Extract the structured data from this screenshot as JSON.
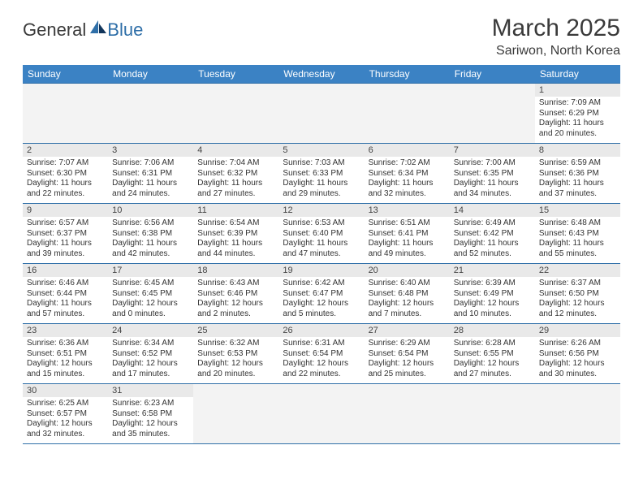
{
  "logo": {
    "text1": "General",
    "text2": "Blue"
  },
  "title": "March 2025",
  "subtitle": "Sariwon, North Korea",
  "colors": {
    "header_bg": "#3b82c4",
    "header_text": "#ffffff",
    "border": "#2f6fa8",
    "daynum_bg": "#e9e9e9",
    "empty_bg": "#f3f3f3",
    "text": "#333333"
  },
  "weekdays": [
    "Sunday",
    "Monday",
    "Tuesday",
    "Wednesday",
    "Thursday",
    "Friday",
    "Saturday"
  ],
  "grid": [
    [
      null,
      null,
      null,
      null,
      null,
      null,
      {
        "n": "1",
        "sr": "7:09 AM",
        "ss": "6:29 PM",
        "dl": "11 hours and 20 minutes."
      }
    ],
    [
      {
        "n": "2",
        "sr": "7:07 AM",
        "ss": "6:30 PM",
        "dl": "11 hours and 22 minutes."
      },
      {
        "n": "3",
        "sr": "7:06 AM",
        "ss": "6:31 PM",
        "dl": "11 hours and 24 minutes."
      },
      {
        "n": "4",
        "sr": "7:04 AM",
        "ss": "6:32 PM",
        "dl": "11 hours and 27 minutes."
      },
      {
        "n": "5",
        "sr": "7:03 AM",
        "ss": "6:33 PM",
        "dl": "11 hours and 29 minutes."
      },
      {
        "n": "6",
        "sr": "7:02 AM",
        "ss": "6:34 PM",
        "dl": "11 hours and 32 minutes."
      },
      {
        "n": "7",
        "sr": "7:00 AM",
        "ss": "6:35 PM",
        "dl": "11 hours and 34 minutes."
      },
      {
        "n": "8",
        "sr": "6:59 AM",
        "ss": "6:36 PM",
        "dl": "11 hours and 37 minutes."
      }
    ],
    [
      {
        "n": "9",
        "sr": "6:57 AM",
        "ss": "6:37 PM",
        "dl": "11 hours and 39 minutes."
      },
      {
        "n": "10",
        "sr": "6:56 AM",
        "ss": "6:38 PM",
        "dl": "11 hours and 42 minutes."
      },
      {
        "n": "11",
        "sr": "6:54 AM",
        "ss": "6:39 PM",
        "dl": "11 hours and 44 minutes."
      },
      {
        "n": "12",
        "sr": "6:53 AM",
        "ss": "6:40 PM",
        "dl": "11 hours and 47 minutes."
      },
      {
        "n": "13",
        "sr": "6:51 AM",
        "ss": "6:41 PM",
        "dl": "11 hours and 49 minutes."
      },
      {
        "n": "14",
        "sr": "6:49 AM",
        "ss": "6:42 PM",
        "dl": "11 hours and 52 minutes."
      },
      {
        "n": "15",
        "sr": "6:48 AM",
        "ss": "6:43 PM",
        "dl": "11 hours and 55 minutes."
      }
    ],
    [
      {
        "n": "16",
        "sr": "6:46 AM",
        "ss": "6:44 PM",
        "dl": "11 hours and 57 minutes."
      },
      {
        "n": "17",
        "sr": "6:45 AM",
        "ss": "6:45 PM",
        "dl": "12 hours and 0 minutes."
      },
      {
        "n": "18",
        "sr": "6:43 AM",
        "ss": "6:46 PM",
        "dl": "12 hours and 2 minutes."
      },
      {
        "n": "19",
        "sr": "6:42 AM",
        "ss": "6:47 PM",
        "dl": "12 hours and 5 minutes."
      },
      {
        "n": "20",
        "sr": "6:40 AM",
        "ss": "6:48 PM",
        "dl": "12 hours and 7 minutes."
      },
      {
        "n": "21",
        "sr": "6:39 AM",
        "ss": "6:49 PM",
        "dl": "12 hours and 10 minutes."
      },
      {
        "n": "22",
        "sr": "6:37 AM",
        "ss": "6:50 PM",
        "dl": "12 hours and 12 minutes."
      }
    ],
    [
      {
        "n": "23",
        "sr": "6:36 AM",
        "ss": "6:51 PM",
        "dl": "12 hours and 15 minutes."
      },
      {
        "n": "24",
        "sr": "6:34 AM",
        "ss": "6:52 PM",
        "dl": "12 hours and 17 minutes."
      },
      {
        "n": "25",
        "sr": "6:32 AM",
        "ss": "6:53 PM",
        "dl": "12 hours and 20 minutes."
      },
      {
        "n": "26",
        "sr": "6:31 AM",
        "ss": "6:54 PM",
        "dl": "12 hours and 22 minutes."
      },
      {
        "n": "27",
        "sr": "6:29 AM",
        "ss": "6:54 PM",
        "dl": "12 hours and 25 minutes."
      },
      {
        "n": "28",
        "sr": "6:28 AM",
        "ss": "6:55 PM",
        "dl": "12 hours and 27 minutes."
      },
      {
        "n": "29",
        "sr": "6:26 AM",
        "ss": "6:56 PM",
        "dl": "12 hours and 30 minutes."
      }
    ],
    [
      {
        "n": "30",
        "sr": "6:25 AM",
        "ss": "6:57 PM",
        "dl": "12 hours and 32 minutes."
      },
      {
        "n": "31",
        "sr": "6:23 AM",
        "ss": "6:58 PM",
        "dl": "12 hours and 35 minutes."
      },
      null,
      null,
      null,
      null,
      null
    ]
  ],
  "labels": {
    "sunrise": "Sunrise:",
    "sunset": "Sunset:",
    "daylight": "Daylight:"
  }
}
